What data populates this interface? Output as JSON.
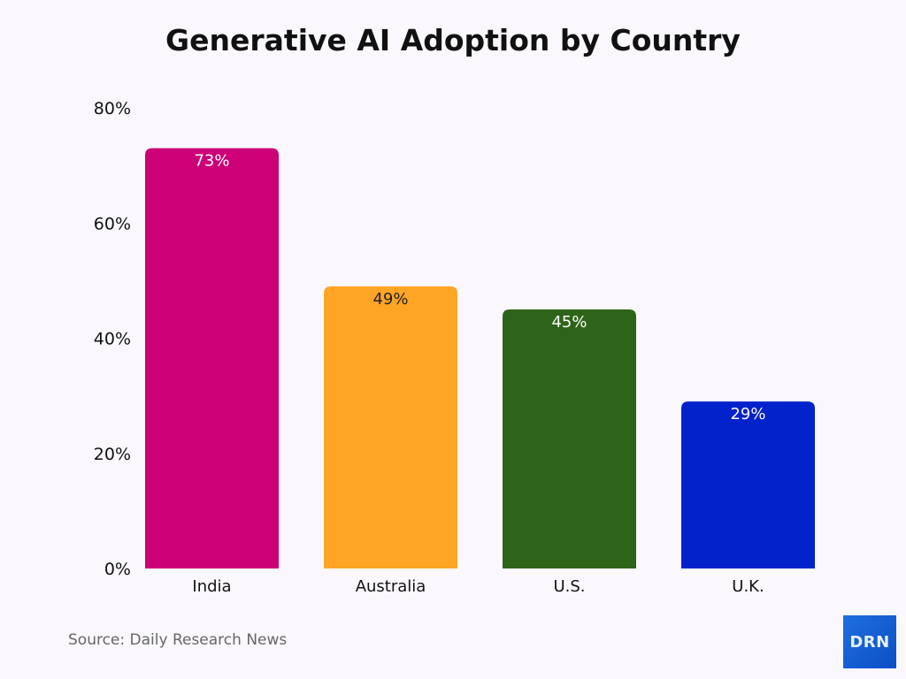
{
  "chart_data": {
    "type": "bar",
    "title": "Generative AI Adoption by Country",
    "categories": [
      "India",
      "Australia",
      "U.S.",
      "U.K."
    ],
    "values": [
      73,
      49,
      45,
      29
    ],
    "data_labels": [
      "73%",
      "49%",
      "45%",
      "29%"
    ],
    "colors": [
      "#cc0077",
      "#ffa526",
      "#2e6419",
      "#0322cc"
    ],
    "label_colors": [
      "#ffffff",
      "#222222",
      "#ffffff",
      "#ffffff"
    ],
    "yticks": [
      "0%",
      "20%",
      "40%",
      "60%",
      "80%"
    ],
    "ytick_values": [
      0,
      20,
      40,
      60,
      80
    ],
    "ylim": [
      0,
      80
    ],
    "xlabel": "",
    "ylabel": "",
    "grid": false,
    "legend": "none"
  },
  "source": "Source: Daily Research News",
  "logo": "DRN"
}
